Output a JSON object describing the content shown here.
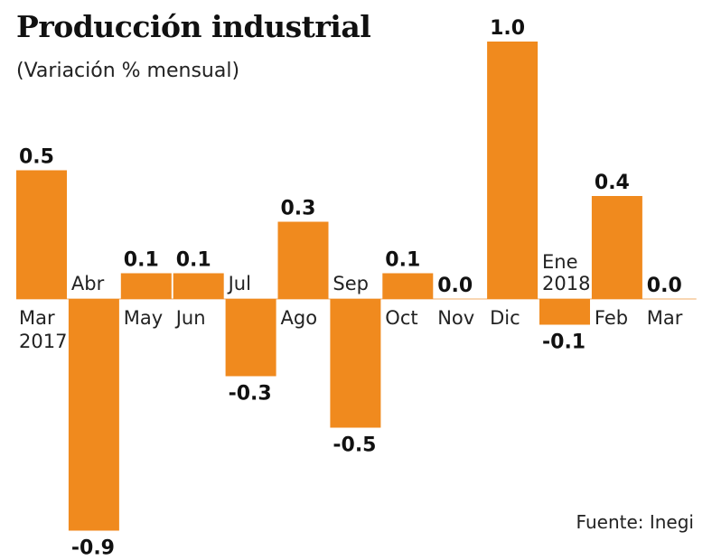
{
  "title": "Producción industrial",
  "subtitle": "(Variación % mensual)",
  "source": "Fuente: Inegi",
  "colors": {
    "bar": "#F08A1E",
    "zero_line": "#F5C89A"
  },
  "chart_data": {
    "type": "bar",
    "title": "Producción industrial",
    "subtitle": "(Variación % mensual)",
    "categories": [
      [
        "Mar",
        "2017"
      ],
      [
        "Abr"
      ],
      [
        "May"
      ],
      [
        "Jun"
      ],
      [
        "Jul"
      ],
      [
        "Ago"
      ],
      [
        "Sep"
      ],
      [
        "Oct"
      ],
      [
        "Nov"
      ],
      [
        "Dic"
      ],
      [
        "Ene",
        "2018"
      ],
      [
        "Feb"
      ],
      [
        "Mar"
      ]
    ],
    "values": [
      0.5,
      -0.9,
      0.1,
      0.1,
      -0.3,
      0.3,
      -0.5,
      0.1,
      0.0,
      1.0,
      -0.1,
      0.4,
      0.0
    ],
    "value_labels": [
      "0.5",
      "-0.9",
      "0.1",
      "0.1",
      "-0.3",
      "0.3",
      "-0.5",
      "0.1",
      "0.0",
      "1.0",
      "-0.1",
      "0.4",
      "0.0"
    ],
    "ylim": [
      -0.9,
      1.0
    ],
    "grid": false,
    "xlabel": "",
    "ylabel": ""
  }
}
